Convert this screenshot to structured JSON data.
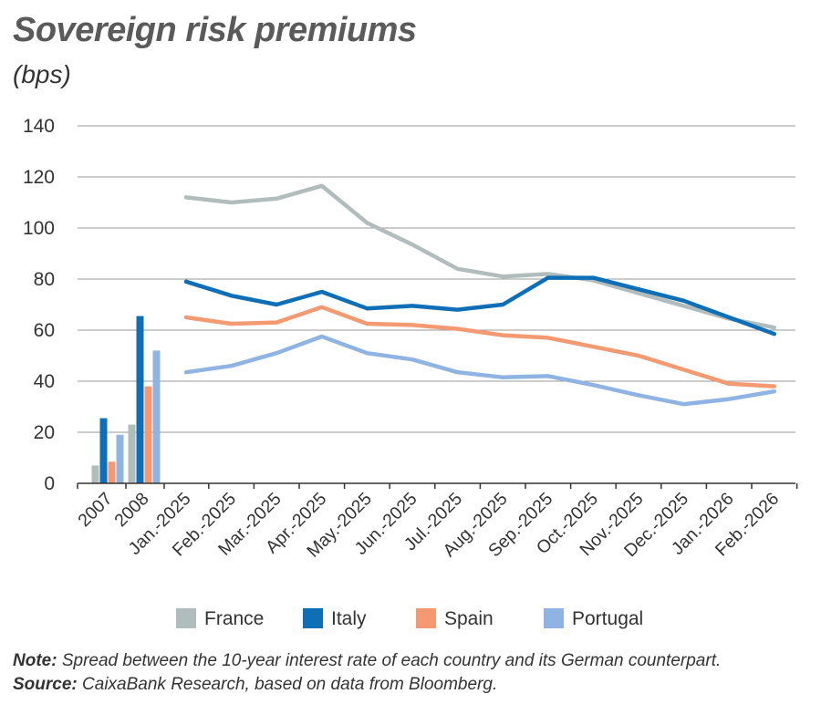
{
  "title": "Sovereign risk premiums",
  "subtitle": "(bps)",
  "note": {
    "label": "Note:",
    "text": " Spread between the 10-year interest rate of each country and its German counterpart."
  },
  "source": {
    "label": "Source:",
    "text": " CaixaBank Research, based on data from Bloomberg."
  },
  "chart_data": {
    "type": "bar+line",
    "ylim": [
      0,
      140
    ],
    "yticks": [
      0,
      20,
      40,
      60,
      80,
      100,
      120,
      140
    ],
    "grid": true,
    "legend_position": "bottom",
    "bar_categories": [
      "2007",
      "2008"
    ],
    "line_categories": [
      "Jan.-2025",
      "Feb.-2025",
      "Mar.-2025",
      "Apr.-2025",
      "May.-2025",
      "Jun.-2025",
      "Jul.-2025",
      "Aug.-2025",
      "Sep.-2025",
      "Oct.-2025",
      "Nov.-2025",
      "Dec.-2025",
      "Jan.-2026",
      "Feb.-2026"
    ],
    "series": [
      {
        "name": "France",
        "color": "#b1bcbc",
        "bar_values": [
          7,
          23
        ],
        "line_values": [
          112,
          110,
          111.5,
          116.5,
          102,
          93.5,
          84,
          81,
          82,
          79.5,
          74.5,
          69.5,
          64.5,
          61
        ]
      },
      {
        "name": "Italy",
        "color": "#0f6fb6",
        "bar_values": [
          25.5,
          65.5
        ],
        "line_values": [
          79,
          73.5,
          70,
          75,
          68.5,
          69.5,
          68,
          70,
          80.5,
          80.5,
          76,
          71.5,
          65,
          58.5
        ]
      },
      {
        "name": "Spain",
        "color": "#f49a72",
        "bar_values": [
          8.5,
          38
        ],
        "line_values": [
          65,
          62.5,
          63,
          69,
          62.5,
          62,
          60.5,
          58,
          57,
          53.5,
          50,
          44.5,
          39,
          38
        ]
      },
      {
        "name": "Portugal",
        "color": "#8fb4e3",
        "bar_values": [
          19,
          52
        ],
        "line_values": [
          43.5,
          46,
          51,
          57.5,
          51,
          48.5,
          43.5,
          41.5,
          42,
          38.5,
          34.5,
          31,
          33,
          36
        ]
      }
    ]
  }
}
